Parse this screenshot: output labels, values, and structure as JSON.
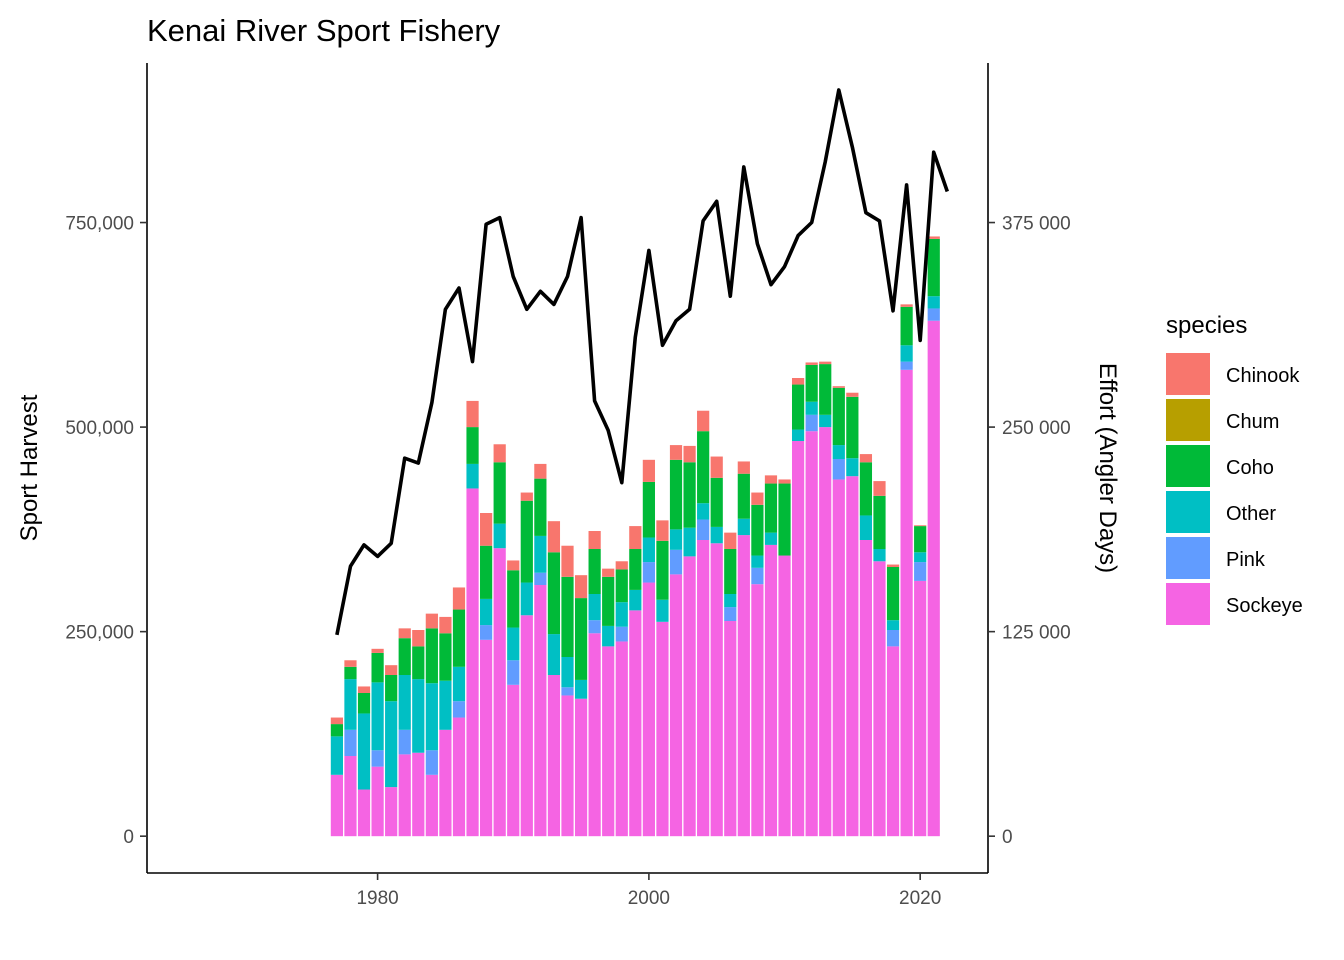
{
  "chart_data": {
    "type": "bar",
    "stacked": true,
    "title": "Kenai River Sport Fishery",
    "xlabel": "",
    "ylabel": "Sport Harvest",
    "y2label": "Effort (Angler Days)",
    "xlim": [
      1963,
      2025
    ],
    "ylim": [
      -45000,
      945000
    ],
    "y2lim": [
      -22500,
      472500
    ],
    "x_ticks": [
      1980,
      2000,
      2020
    ],
    "y_ticks": [
      0,
      250000,
      500000,
      750000
    ],
    "y_tick_labels": [
      "0",
      "250,000",
      "500,000",
      "750,000"
    ],
    "y2_ticks": [
      0,
      125000,
      250000,
      375000
    ],
    "y2_tick_labels": [
      "0",
      "125 000",
      "250 000",
      "375 000"
    ],
    "x_tick_labels": [
      "1980",
      "2000",
      "2020"
    ],
    "grid": false,
    "legend": {
      "title": "species",
      "position": "right"
    },
    "colors": {
      "Chinook": "#F8766D",
      "Chum": "#B79F00",
      "Coho": "#00BA38",
      "Other": "#00BFC4",
      "Pink": "#619CFF",
      "Sockeye": "#F564E3",
      "effort_line": "#000000"
    },
    "years": [
      1977,
      1978,
      1979,
      1980,
      1981,
      1982,
      1983,
      1984,
      1985,
      1986,
      1987,
      1988,
      1989,
      1990,
      1991,
      1992,
      1993,
      1994,
      1995,
      1996,
      1997,
      1998,
      1999,
      2000,
      2001,
      2002,
      2003,
      2004,
      2005,
      2006,
      2007,
      2008,
      2009,
      2010,
      2011,
      2012,
      2013,
      2014,
      2015,
      2016,
      2017,
      2018,
      2019,
      2020,
      2021
    ],
    "series": [
      {
        "name": "Sockeye",
        "values": [
          75000,
          98000,
          57000,
          85000,
          60000,
          100000,
          102000,
          75000,
          130000,
          145000,
          425000,
          240000,
          352000,
          185000,
          270000,
          307000,
          197000,
          172000,
          168000,
          248000,
          232000,
          238000,
          276000,
          310000,
          262000,
          320000,
          342000,
          362000,
          358000,
          263000,
          368000,
          308000,
          356000,
          343000,
          483000,
          495000,
          500000,
          436000,
          440000,
          362000,
          336000,
          232000,
          570000,
          312000,
          630000
        ]
      },
      {
        "name": "Pink",
        "values": [
          0,
          32000,
          0,
          20000,
          0,
          30000,
          0,
          30000,
          0,
          20000,
          0,
          18000,
          0,
          30000,
          0,
          15000,
          0,
          10000,
          0,
          16000,
          0,
          18000,
          0,
          25000,
          0,
          30000,
          0,
          25000,
          0,
          17000,
          0,
          20000,
          0,
          0,
          0,
          20000,
          0,
          25000,
          0,
          0,
          0,
          20000,
          10000,
          23000,
          15000
        ]
      },
      {
        "name": "Other",
        "values": [
          47000,
          62000,
          93000,
          83000,
          105000,
          67000,
          90000,
          82000,
          60000,
          42000,
          30000,
          32000,
          30000,
          40000,
          40000,
          45000,
          50000,
          37000,
          23000,
          32000,
          25000,
          30000,
          25000,
          30000,
          27000,
          25000,
          35000,
          20000,
          20000,
          16000,
          20000,
          15000,
          15000,
          0,
          14000,
          16000,
          15000,
          17000,
          22000,
          30000,
          15000,
          12000,
          20000,
          12000,
          15000
        ]
      },
      {
        "name": "Coho",
        "values": [
          15000,
          15000,
          25000,
          36000,
          32000,
          45000,
          40000,
          67000,
          58000,
          70000,
          45000,
          65000,
          75000,
          70000,
          100000,
          70000,
          100000,
          98000,
          100000,
          55000,
          60000,
          40000,
          50000,
          68000,
          72000,
          85000,
          80000,
          88000,
          60000,
          55000,
          55000,
          62000,
          60000,
          88000,
          55000,
          45000,
          62000,
          70000,
          75000,
          65000,
          65000,
          65000,
          47000,
          32000,
          70000
        ]
      },
      {
        "name": "Chinook",
        "values": [
          8000,
          8000,
          8000,
          5000,
          12000,
          12000,
          20000,
          18000,
          20000,
          27000,
          32000,
          40000,
          22000,
          12000,
          10000,
          18000,
          38000,
          38000,
          28000,
          22000,
          10000,
          10000,
          28000,
          27000,
          25000,
          18000,
          20000,
          25000,
          26000,
          20000,
          15000,
          15000,
          10000,
          5000,
          8000,
          3000,
          3000,
          2000,
          5000,
          10000,
          18000,
          3000,
          3000,
          1000,
          3000
        ]
      },
      {
        "name": "Chum",
        "values": [
          0,
          0,
          0,
          0,
          0,
          0,
          0,
          0,
          0,
          0,
          0,
          0,
          0,
          0,
          0,
          0,
          0,
          0,
          0,
          0,
          0,
          0,
          0,
          0,
          0,
          0,
          0,
          0,
          0,
          0,
          0,
          0,
          0,
          0,
          0,
          0,
          0,
          0,
          0,
          0,
          0,
          0,
          0,
          0,
          0
        ]
      }
    ],
    "effort": {
      "name": "Effort (Angler Days)",
      "years": [
        1977,
        1978,
        1979,
        1980,
        1981,
        1982,
        1983,
        1984,
        1985,
        1986,
        1987,
        1988,
        1989,
        1990,
        1991,
        1992,
        1993,
        1994,
        1995,
        1996,
        1997,
        1998,
        1999,
        2000,
        2001,
        2002,
        2003,
        2004,
        2005,
        2006,
        2007,
        2008,
        2009,
        2010,
        2011,
        2012,
        2013,
        2014,
        2015,
        2016,
        2017,
        2018,
        2019,
        2020,
        2021,
        2022
      ],
      "values": [
        123000,
        165000,
        178000,
        171000,
        179000,
        231000,
        228000,
        265000,
        322000,
        335000,
        290000,
        374000,
        378000,
        342000,
        322000,
        333000,
        325000,
        342000,
        378000,
        266000,
        248000,
        216000,
        305000,
        358000,
        300000,
        315000,
        322000,
        376000,
        388000,
        330000,
        409000,
        362000,
        337000,
        348000,
        367000,
        375000,
        412000,
        456000,
        421000,
        381000,
        376000,
        321000,
        398000,
        303000,
        418000,
        394000
      ]
    }
  }
}
